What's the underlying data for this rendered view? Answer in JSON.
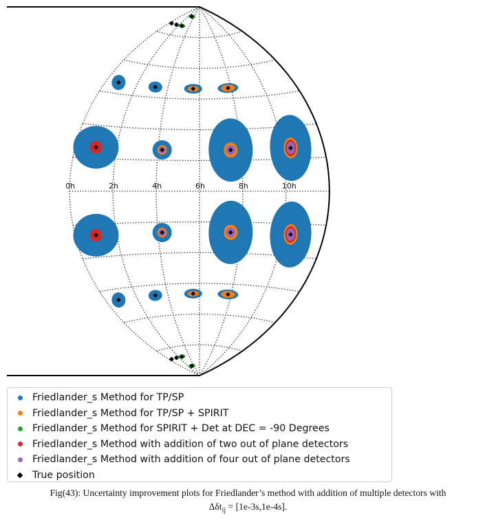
{
  "chart_data": {
    "type": "scatter",
    "projection": "aitoff (left half)",
    "x_tick_labels": [
      "0h",
      "2h",
      "4h",
      "6h",
      "8h",
      "10h"
    ],
    "points": [
      {
        "ra_h": 0.4,
        "dec_deg": -80,
        "blue": [
          3,
          3
        ],
        "orange": [
          0,
          0
        ],
        "green": [
          2.5,
          2.5
        ],
        "red": [
          0,
          0
        ],
        "purple": [
          0,
          0
        ]
      },
      {
        "ra_h": 1.5,
        "dec_deg": -80,
        "blue": [
          3,
          3
        ],
        "orange": [
          0,
          0
        ],
        "green": [
          3,
          2
        ],
        "red": [
          0,
          0
        ],
        "purple": [
          0,
          0
        ]
      },
      {
        "ra_h": 2.6,
        "dec_deg": -80,
        "blue": [
          5,
          3
        ],
        "orange": [
          0,
          0
        ],
        "green": [
          5,
          3
        ],
        "red": [
          0,
          0
        ],
        "purple": [
          2,
          1.5
        ]
      },
      {
        "ra_h": 3.2,
        "dec_deg": -85,
        "blue": [
          5,
          3
        ],
        "orange": [
          0,
          0
        ],
        "green": [
          5,
          3
        ],
        "red": [
          0,
          0
        ],
        "purple": [
          0,
          0
        ]
      },
      {
        "ra_h": 0.8,
        "dec_deg": -50,
        "blue": [
          10,
          11
        ],
        "orange": [
          0,
          0
        ],
        "green": [
          0,
          0
        ],
        "red": [
          0,
          0
        ],
        "purple": [
          0,
          0
        ]
      },
      {
        "ra_h": 3.2,
        "dec_deg": -50,
        "blue": [
          10,
          8
        ],
        "orange": [
          0,
          0
        ],
        "green": [
          0,
          0
        ],
        "red": [
          0,
          0
        ],
        "purple": [
          0,
          0
        ]
      },
      {
        "ra_h": 5.6,
        "dec_deg": -50,
        "blue": [
          13,
          7
        ],
        "orange": [
          8,
          4
        ],
        "green": [
          0,
          0
        ],
        "red": [
          0,
          0
        ],
        "purple": [
          0,
          0
        ]
      },
      {
        "ra_h": 7.8,
        "dec_deg": -50,
        "blue": [
          15,
          7
        ],
        "orange": [
          10,
          5
        ],
        "green": [
          0,
          0
        ],
        "red": [
          0,
          0
        ],
        "purple": [
          0,
          0
        ]
      },
      {
        "ra_h": 1.0,
        "dec_deg": -20,
        "blue": [
          33,
          31
        ],
        "orange": [
          0,
          0
        ],
        "green": [
          0,
          0
        ],
        "red": [
          9,
          9
        ],
        "purple": [
          0,
          0
        ]
      },
      {
        "ra_h": 4.2,
        "dec_deg": -20,
        "blue": [
          14,
          14
        ],
        "orange": [
          7,
          7
        ],
        "green": [
          0,
          0
        ],
        "red": [
          0,
          0
        ],
        "purple": [
          5,
          5
        ]
      },
      {
        "ra_h": 7.5,
        "dec_deg": -20,
        "blue": [
          32,
          46
        ],
        "orange": [
          10,
          11
        ],
        "green": [
          0,
          0
        ],
        "red": [
          0,
          0
        ],
        "purple": [
          7,
          7
        ]
      },
      {
        "ra_h": 10.4,
        "dec_deg": -20,
        "blue": [
          30,
          48
        ],
        "orange": [
          10,
          15
        ],
        "green": [
          0,
          0
        ],
        "red": [
          8,
          12
        ],
        "purple": [
          6,
          9
        ]
      },
      {
        "ra_h": 1.0,
        "dec_deg": 20,
        "blue": [
          33,
          31
        ],
        "orange": [
          0,
          0
        ],
        "green": [
          0,
          0
        ],
        "red": [
          9,
          9
        ],
        "purple": [
          0,
          0
        ]
      },
      {
        "ra_h": 4.2,
        "dec_deg": 20,
        "blue": [
          14,
          14
        ],
        "orange": [
          7,
          7
        ],
        "green": [
          0,
          0
        ],
        "red": [
          0,
          0
        ],
        "purple": [
          5,
          5
        ]
      },
      {
        "ra_h": 7.5,
        "dec_deg": 20,
        "blue": [
          32,
          46
        ],
        "orange": [
          10,
          11
        ],
        "green": [
          0,
          0
        ],
        "red": [
          0,
          0
        ],
        "purple": [
          7,
          7
        ]
      },
      {
        "ra_h": 10.4,
        "dec_deg": 20,
        "blue": [
          30,
          48
        ],
        "orange": [
          10,
          15
        ],
        "green": [
          0,
          0
        ],
        "red": [
          8,
          12
        ],
        "purple": [
          6,
          9
        ]
      },
      {
        "ra_h": 0.8,
        "dec_deg": 50,
        "blue": [
          10,
          11
        ],
        "orange": [
          0,
          0
        ],
        "green": [
          0,
          0
        ],
        "red": [
          0,
          0
        ],
        "purple": [
          0,
          0
        ]
      },
      {
        "ra_h": 3.2,
        "dec_deg": 50,
        "blue": [
          10,
          8
        ],
        "orange": [
          0,
          0
        ],
        "green": [
          0,
          0
        ],
        "red": [
          0,
          0
        ],
        "purple": [
          0,
          0
        ]
      },
      {
        "ra_h": 5.6,
        "dec_deg": 50,
        "blue": [
          13,
          7
        ],
        "orange": [
          8,
          4
        ],
        "green": [
          0,
          0
        ],
        "red": [
          0,
          0
        ],
        "purple": [
          0,
          0
        ]
      },
      {
        "ra_h": 7.8,
        "dec_deg": 50,
        "blue": [
          15,
          7
        ],
        "orange": [
          10,
          5
        ],
        "green": [
          0,
          0
        ],
        "red": [
          0,
          0
        ],
        "purple": [
          0,
          0
        ]
      },
      {
        "ra_h": 0.4,
        "dec_deg": 80,
        "blue": [
          3,
          3
        ],
        "orange": [
          0,
          0
        ],
        "green": [
          2.5,
          2.5
        ],
        "red": [
          0,
          0
        ],
        "purple": [
          0,
          0
        ]
      },
      {
        "ra_h": 1.5,
        "dec_deg": 80,
        "blue": [
          3,
          3
        ],
        "orange": [
          0,
          0
        ],
        "green": [
          3,
          2
        ],
        "red": [
          0,
          0
        ],
        "purple": [
          0,
          0
        ]
      },
      {
        "ra_h": 2.6,
        "dec_deg": 80,
        "blue": [
          5,
          3
        ],
        "orange": [
          0,
          0
        ],
        "green": [
          5,
          3
        ],
        "red": [
          0,
          0
        ],
        "purple": [
          2,
          1.5
        ]
      },
      {
        "ra_h": 3.2,
        "dec_deg": 85,
        "blue": [
          5,
          3
        ],
        "orange": [
          0,
          0
        ],
        "green": [
          5,
          3
        ],
        "red": [
          0,
          0
        ],
        "purple": [
          0,
          0
        ]
      }
    ],
    "legend": [
      {
        "label": "Friedlander_s Method for TP/SP",
        "color": "#1f77b4",
        "marker": "dot"
      },
      {
        "label": "Friedlander_s Method for TP/SP + SPIRIT",
        "color": "#ff7f0e",
        "marker": "dot"
      },
      {
        "label": "Friedlander_s Method for SPIRIT + Det at DEC = -90 Degrees",
        "color": "#2ca02c",
        "marker": "dot"
      },
      {
        "label": "Friedlander_s Method with addition of two out of plane detectors",
        "color": "#d62728",
        "marker": "dot"
      },
      {
        "label": "Friedlander_s Method with addition of four out of plane detectors",
        "color": "#9467bd",
        "marker": "dot"
      },
      {
        "label": "True position",
        "color": "#000000",
        "marker": "diamond"
      }
    ]
  },
  "caption": {
    "line1": "Fig(43): Uncertainty improvement plots for Friedlander’s method with addition of multiple detectors with",
    "line2_prefix": "Δδt",
    "line2_sub": "ij",
    "line2_suffix": " = [1e-3s,1e-4s]."
  }
}
